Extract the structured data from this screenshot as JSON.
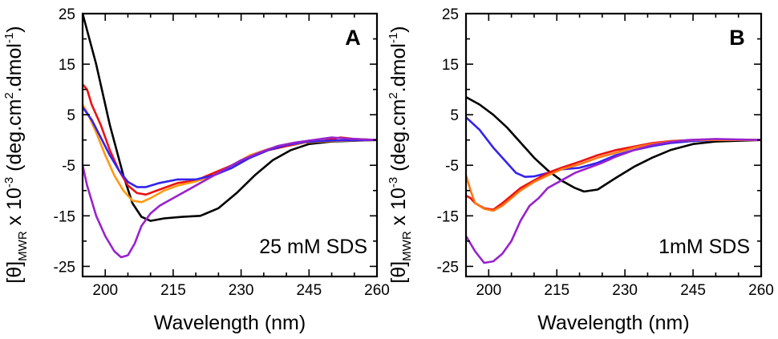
{
  "chart_data": [
    {
      "type": "line",
      "panel": "A",
      "annotation": "25 mM SDS",
      "xlabel": "Wavelength (nm)",
      "ylabel": {
        "main": "[θ]",
        "sub": "MWR",
        "mid": " x 10",
        "sup": "-3",
        "rest": " (deg.cm",
        "sup2": "2",
        "rest2": ".dmol",
        "sup3": "-1",
        "end": ")"
      },
      "xlim": [
        195,
        260
      ],
      "ylim": [
        -27,
        25
      ],
      "xticks": [
        200,
        215,
        230,
        245,
        260
      ],
      "yticks": [
        25,
        15,
        5,
        -5,
        -15,
        -25
      ],
      "series": [
        {
          "color": "#000000",
          "points": [
            [
              195,
              25
            ],
            [
              198,
              15
            ],
            [
              201,
              3
            ],
            [
              204,
              -7
            ],
            [
              206,
              -12.5
            ],
            [
              208,
              -15.2
            ],
            [
              210,
              -16
            ],
            [
              213,
              -15.5
            ],
            [
              217,
              -15.2
            ],
            [
              221,
              -15
            ],
            [
              225,
              -13.5
            ],
            [
              229,
              -10.5
            ],
            [
              233,
              -7
            ],
            [
              237,
              -4
            ],
            [
              241,
              -2
            ],
            [
              245,
              -0.8
            ],
            [
              250,
              -0.3
            ],
            [
              260,
              0
            ]
          ]
        },
        {
          "color": "#ee1111",
          "points": [
            [
              195,
              11
            ],
            [
              196,
              10
            ],
            [
              197,
              7
            ],
            [
              199,
              3
            ],
            [
              201,
              -2
            ],
            [
              203,
              -6
            ],
            [
              205,
              -9
            ],
            [
              207,
              -10.5
            ],
            [
              209,
              -10.8
            ],
            [
              212,
              -9.8
            ],
            [
              216,
              -8.5
            ],
            [
              220,
              -8
            ],
            [
              224,
              -6.5
            ],
            [
              228,
              -5
            ],
            [
              232,
              -3.5
            ],
            [
              236,
              -2
            ],
            [
              240,
              -1.2
            ],
            [
              244,
              -0.5
            ],
            [
              248,
              -0.2
            ],
            [
              252,
              0.5
            ],
            [
              255,
              0.2
            ],
            [
              260,
              0
            ]
          ]
        },
        {
          "color": "#ff9911",
          "points": [
            [
              195,
              7
            ],
            [
              196,
              5.5
            ],
            [
              198,
              1.5
            ],
            [
              200,
              -3
            ],
            [
              202,
              -7
            ],
            [
              204,
              -10
            ],
            [
              206,
              -12
            ],
            [
              208,
              -12.3
            ],
            [
              210,
              -11.5
            ],
            [
              213,
              -10
            ],
            [
              216,
              -9
            ],
            [
              220,
              -8.2
            ],
            [
              224,
              -7
            ],
            [
              228,
              -5
            ],
            [
              232,
              -3
            ],
            [
              236,
              -1.8
            ],
            [
              240,
              -1
            ],
            [
              244,
              -0.5
            ],
            [
              250,
              -0.2
            ],
            [
              260,
              0
            ]
          ]
        },
        {
          "color": "#3322ee",
          "points": [
            [
              195,
              6.5
            ],
            [
              197,
              4
            ],
            [
              199,
              0.5
            ],
            [
              201,
              -3
            ],
            [
              203,
              -6
            ],
            [
              205,
              -8.3
            ],
            [
              207,
              -9.3
            ],
            [
              209,
              -9.3
            ],
            [
              212,
              -8.5
            ],
            [
              216,
              -7.8
            ],
            [
              220,
              -7.8
            ],
            [
              224,
              -7
            ],
            [
              228,
              -5.5
            ],
            [
              232,
              -3.5
            ],
            [
              236,
              -2
            ],
            [
              240,
              -1
            ],
            [
              244,
              -0.4
            ],
            [
              250,
              -0.1
            ],
            [
              260,
              0
            ]
          ]
        },
        {
          "color": "#9922cc",
          "points": [
            [
              195,
              -5
            ],
            [
              196,
              -9
            ],
            [
              198,
              -15
            ],
            [
              200,
              -19
            ],
            [
              202,
              -22
            ],
            [
              203.5,
              -23.2
            ],
            [
              205,
              -22.8
            ],
            [
              206.5,
              -20.5
            ],
            [
              208,
              -17
            ],
            [
              210,
              -14.5
            ],
            [
              212,
              -13
            ],
            [
              215,
              -11.5
            ],
            [
              218,
              -10
            ],
            [
              222,
              -8
            ],
            [
              226,
              -6
            ],
            [
              230,
              -4
            ],
            [
              234,
              -2.5
            ],
            [
              238,
              -1.2
            ],
            [
              242,
              -0.5
            ],
            [
              246,
              0
            ],
            [
              250,
              0.5
            ],
            [
              253,
              0.3
            ],
            [
              260,
              0
            ]
          ]
        }
      ]
    },
    {
      "type": "line",
      "panel": "B",
      "annotation": "1mM SDS",
      "xlabel": "Wavelength (nm)",
      "ylabel": {
        "main": "[θ]",
        "sub": "MWR",
        "mid": " x 10",
        "sup": "-3",
        "rest": " (deg.cm",
        "sup2": "2",
        "rest2": ".dmol",
        "sup3": "-1",
        "end": ")"
      },
      "xlim": [
        195,
        260
      ],
      "ylim": [
        -27,
        25
      ],
      "xticks": [
        200,
        215,
        230,
        245,
        260
      ],
      "yticks": [
        25,
        15,
        5,
        -5,
        -15,
        -25
      ],
      "series": [
        {
          "color": "#000000",
          "points": [
            [
              195,
              8.5
            ],
            [
              198,
              7
            ],
            [
              201,
              5
            ],
            [
              204,
              2.5
            ],
            [
              207,
              -0.5
            ],
            [
              210,
              -3.5
            ],
            [
              213,
              -6
            ],
            [
              216,
              -8
            ],
            [
              219,
              -9.5
            ],
            [
              221,
              -10.2
            ],
            [
              224,
              -9.8
            ],
            [
              228,
              -7.5
            ],
            [
              232,
              -5.3
            ],
            [
              236,
              -3.5
            ],
            [
              240,
              -2
            ],
            [
              245,
              -0.8
            ],
            [
              250,
              -0.3
            ],
            [
              260,
              0
            ]
          ]
        },
        {
          "color": "#3322ee",
          "points": [
            [
              195,
              4.5
            ],
            [
              198,
              2
            ],
            [
              201,
              -1.5
            ],
            [
              204,
              -4.5
            ],
            [
              206,
              -6.5
            ],
            [
              208,
              -7.3
            ],
            [
              210,
              -7.2
            ],
            [
              213,
              -6.5
            ],
            [
              216,
              -5.8
            ],
            [
              220,
              -5.5
            ],
            [
              224,
              -4.5
            ],
            [
              228,
              -3
            ],
            [
              232,
              -2
            ],
            [
              236,
              -1.2
            ],
            [
              240,
              -0.6
            ],
            [
              245,
              -0.2
            ],
            [
              250,
              0
            ],
            [
              260,
              0
            ]
          ]
        },
        {
          "color": "#ee1111",
          "points": [
            [
              195,
              -11
            ],
            [
              196,
              -11.5
            ],
            [
              197,
              -12.5
            ],
            [
              199,
              -13.5
            ],
            [
              201,
              -13.8
            ],
            [
              203,
              -12.5
            ],
            [
              205,
              -11
            ],
            [
              207,
              -9.5
            ],
            [
              210,
              -8
            ],
            [
              213,
              -6.5
            ],
            [
              216,
              -5.5
            ],
            [
              220,
              -4.3
            ],
            [
              224,
              -3
            ],
            [
              228,
              -2
            ],
            [
              232,
              -1.3
            ],
            [
              236,
              -0.6
            ],
            [
              240,
              -0.2
            ],
            [
              245,
              0
            ],
            [
              260,
              0
            ]
          ]
        },
        {
          "color": "#ff7711",
          "points": [
            [
              195,
              -7
            ],
            [
              196,
              -10
            ],
            [
              197,
              -12.5
            ],
            [
              199,
              -13.6
            ],
            [
              201,
              -14
            ],
            [
              203,
              -13
            ],
            [
              205,
              -11.5
            ],
            [
              207,
              -10
            ],
            [
              210,
              -8.3
            ],
            [
              213,
              -7
            ],
            [
              216,
              -5.8
            ],
            [
              220,
              -4.8
            ],
            [
              224,
              -3.5
            ],
            [
              228,
              -2.5
            ],
            [
              232,
              -1.5
            ],
            [
              236,
              -0.8
            ],
            [
              240,
              -0.3
            ],
            [
              245,
              0
            ],
            [
              260,
              0
            ]
          ]
        },
        {
          "color": "#9922cc",
          "points": [
            [
              195,
              -19
            ],
            [
              197,
              -22
            ],
            [
              199,
              -24.3
            ],
            [
              201,
              -24
            ],
            [
              203,
              -22.5
            ],
            [
              205,
              -20
            ],
            [
              207,
              -16
            ],
            [
              209,
              -13
            ],
            [
              211,
              -11.5
            ],
            [
              213,
              -9.5
            ],
            [
              216,
              -8
            ],
            [
              219,
              -6.5
            ],
            [
              222,
              -5.5
            ],
            [
              225,
              -4.5
            ],
            [
              228,
              -3.3
            ],
            [
              232,
              -2
            ],
            [
              236,
              -1
            ],
            [
              240,
              -0.4
            ],
            [
              244,
              0
            ],
            [
              250,
              0.2
            ],
            [
              260,
              0
            ]
          ]
        }
      ]
    }
  ]
}
